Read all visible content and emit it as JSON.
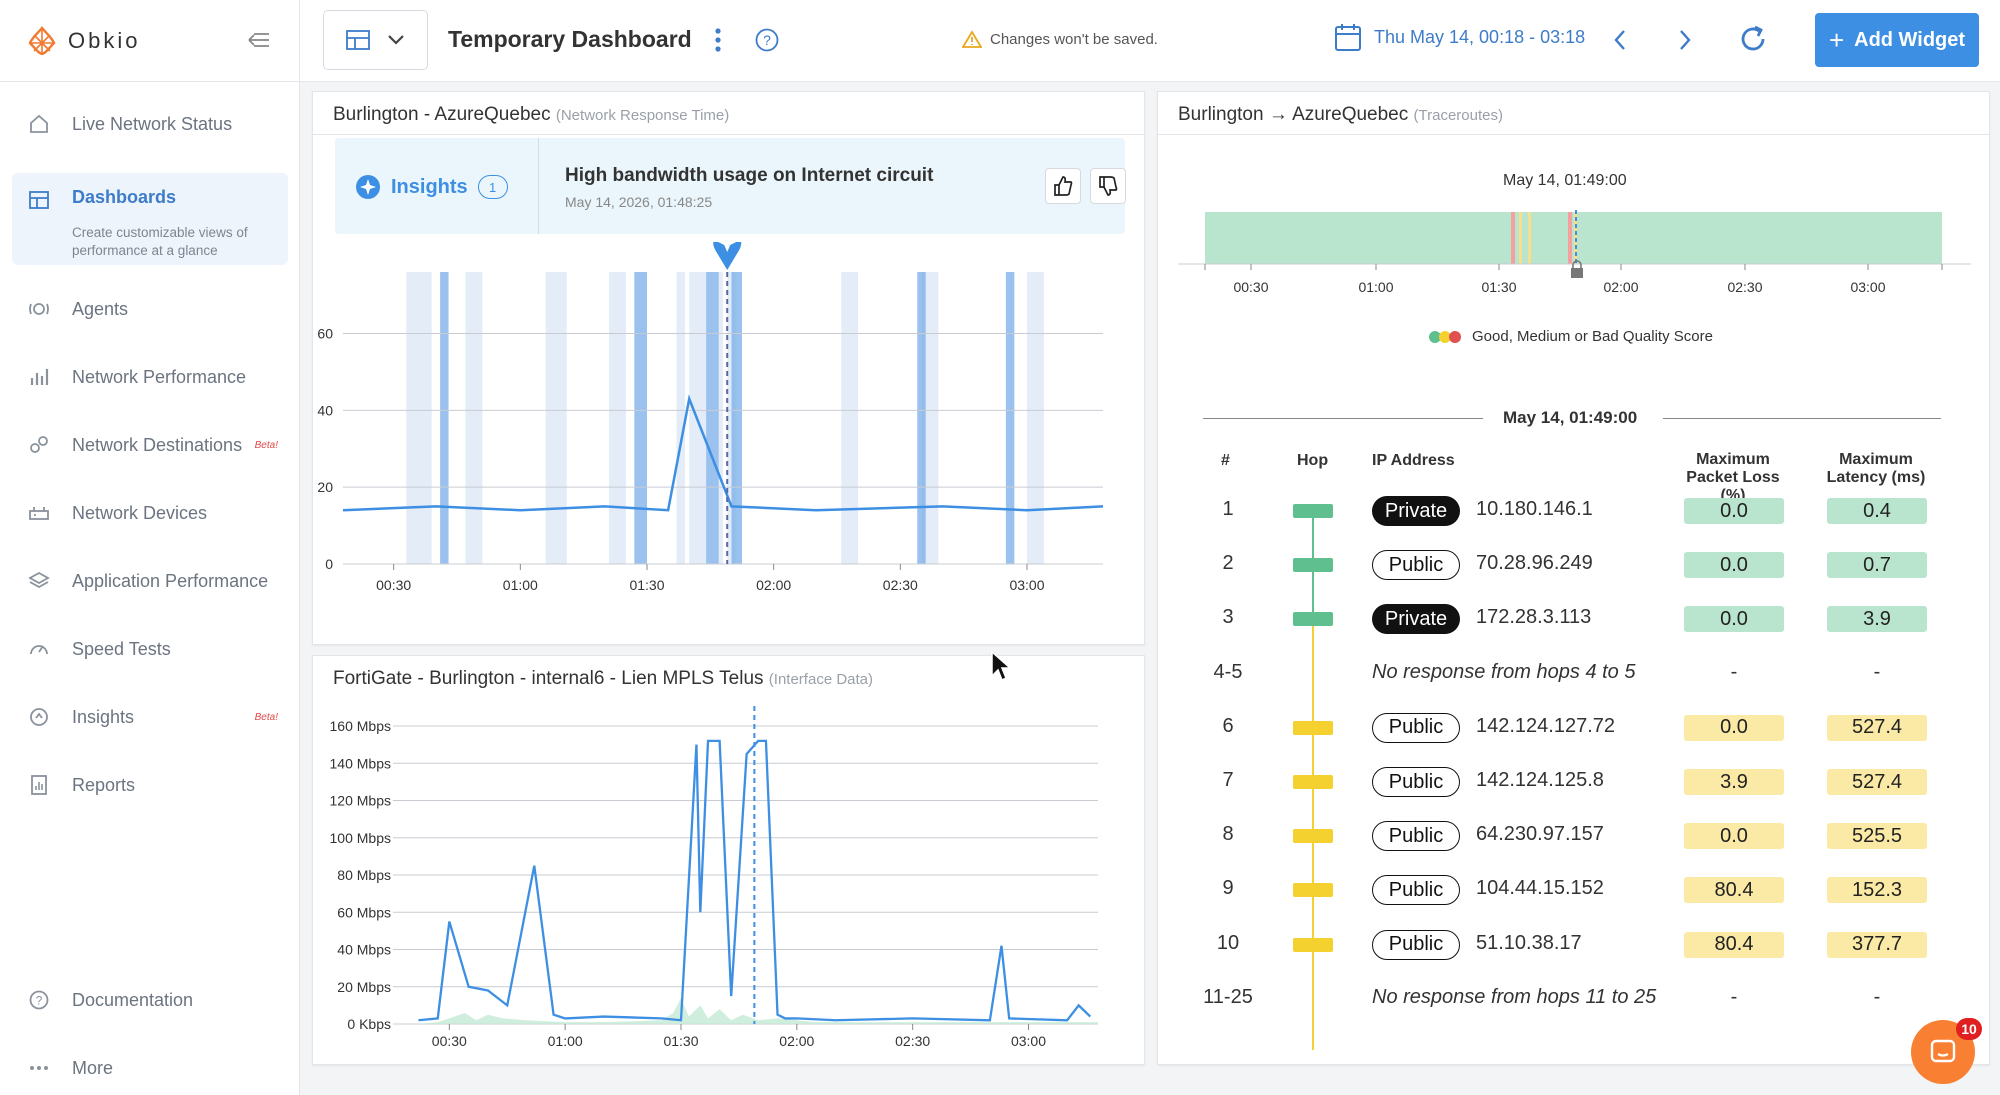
{
  "app": {
    "name": "Obkio"
  },
  "sidebar": {
    "items": [
      {
        "label": "Live Network Status",
        "icon": "home-icon"
      },
      {
        "label": "Dashboards",
        "icon": "dashboard-icon",
        "description": "Create customizable views of performance at a glance",
        "active": true
      },
      {
        "label": "Agents",
        "icon": "agent-icon"
      },
      {
        "label": "Network Performance",
        "icon": "bar-chart-icon"
      },
      {
        "label": "Network Destinations",
        "icon": "destination-icon",
        "badge": "Beta!"
      },
      {
        "label": "Network Devices",
        "icon": "device-icon"
      },
      {
        "label": "Application Performance",
        "icon": "layers-icon"
      },
      {
        "label": "Speed Tests",
        "icon": "gauge-icon"
      },
      {
        "label": "Insights",
        "icon": "insights-icon",
        "badge": "Beta!"
      },
      {
        "label": "Reports",
        "icon": "report-icon"
      }
    ],
    "bottom": [
      {
        "label": "Documentation",
        "icon": "help-circle-icon"
      },
      {
        "label": "More",
        "icon": "more-icon"
      }
    ]
  },
  "header": {
    "title": "Temporary Dashboard",
    "unsaved_warning": "Changes won't be saved.",
    "date_range": "Thu May 14, 00:18 - 03:18",
    "add_widget": "Add Widget"
  },
  "response_panel": {
    "title": "Burlington - AzureQuebec",
    "subtitle": "(Network Response Time)",
    "insights_label": "Insights",
    "insights_count": "1",
    "insight_title": "High bandwidth usage on Internet circuit",
    "insight_date": "May 14, 2026, 01:48:25",
    "y_ticks": [
      "0",
      "20",
      "40",
      "60"
    ],
    "x_ticks": [
      "00:30",
      "01:00",
      "01:30",
      "02:00",
      "02:30",
      "03:00"
    ]
  },
  "interface_panel": {
    "title": "FortiGate - Burlington - internal6 - Lien MPLS Telus",
    "subtitle": "(Interface Data)",
    "y_ticks": [
      "0 Kbps",
      "20 Mbps",
      "40 Mbps",
      "60 Mbps",
      "80 Mbps",
      "100 Mbps",
      "120 Mbps",
      "140 Mbps",
      "160 Mbps"
    ],
    "x_ticks": [
      "00:30",
      "01:00",
      "01:30",
      "02:00",
      "02:30",
      "03:00"
    ]
  },
  "chart_data": [
    {
      "type": "line",
      "x_ticks": [
        "00:30",
        "01:00",
        "01:30",
        "02:00",
        "02:30",
        "03:00"
      ],
      "ylim": [
        0,
        76
      ],
      "series": [
        {
          "x": [
            "00:18",
            "00:40",
            "01:00",
            "01:20",
            "01:35",
            "01:40",
            "01:50",
            "02:10",
            "02:40",
            "03:00",
            "03:18"
          ],
          "values": [
            14,
            15,
            14,
            15,
            14,
            43,
            15,
            14,
            15,
            14,
            15
          ]
        }
      ]
    },
    {
      "type": "line",
      "x_ticks": [
        "00:30",
        "01:00",
        "01:30",
        "02:00",
        "02:30",
        "03:00"
      ],
      "ylabel": "",
      "ylim": [
        0,
        160
      ],
      "series": [
        {
          "x": [
            "00:22",
            "00:27",
            "00:30",
            "00:35",
            "00:40",
            "00:45",
            "00:52",
            "00:57",
            "01:00",
            "01:10",
            "01:25",
            "01:30",
            "01:34",
            "01:35",
            "01:37",
            "01:40",
            "01:43",
            "01:47",
            "01:50",
            "01:52",
            "01:55",
            "01:57",
            "02:00",
            "02:10",
            "02:30",
            "02:50",
            "02:53",
            "02:55",
            "03:10",
            "03:13",
            "03:16"
          ],
          "values": [
            2,
            3,
            55,
            20,
            18,
            10,
            85,
            5,
            3,
            4,
            3,
            2,
            150,
            60,
            152,
            152,
            15,
            145,
            152,
            152,
            5,
            3,
            3,
            2,
            3,
            2,
            42,
            3,
            2,
            10,
            4
          ]
        }
      ]
    }
  ],
  "traceroute_panel": {
    "title": "Burlington → AzureQuebec",
    "subtitle": "(Traceroutes)",
    "timeline_time": "May 14, 01:49:00",
    "timeline_ticks": [
      "00:30",
      "01:00",
      "01:30",
      "02:00",
      "02:30",
      "03:00"
    ],
    "legend": "Good, Medium or Bad Quality Score",
    "table_time": "May 14, 01:49:00",
    "columns": {
      "num": "#",
      "hop": "Hop",
      "ip": "IP Address",
      "loss_1": "Maximum",
      "loss_2": "Packet Loss (%)",
      "lat_1": "Maximum",
      "lat_2": "Latency (ms)"
    },
    "rows": [
      {
        "num": "1",
        "type": "Private",
        "ip": "10.180.146.1",
        "loss": "0.0",
        "latency": "0.4",
        "color": "green"
      },
      {
        "num": "2",
        "type": "Public",
        "ip": "70.28.96.249",
        "loss": "0.0",
        "latency": "0.7",
        "color": "green"
      },
      {
        "num": "3",
        "type": "Private",
        "ip": "172.28.3.113",
        "loss": "0.0",
        "latency": "3.9",
        "color": "green"
      },
      {
        "num": "4-5",
        "message": "No response from hops 4 to 5",
        "loss": "-",
        "latency": "-"
      },
      {
        "num": "6",
        "type": "Public",
        "ip": "142.124.127.72",
        "loss": "0.0",
        "latency": "527.4",
        "color": "yellow"
      },
      {
        "num": "7",
        "type": "Public",
        "ip": "142.124.125.8",
        "loss": "3.9",
        "latency": "527.4",
        "color": "yellow"
      },
      {
        "num": "8",
        "type": "Public",
        "ip": "64.230.97.157",
        "loss": "0.0",
        "latency": "525.5",
        "color": "yellow"
      },
      {
        "num": "9",
        "type": "Public",
        "ip": "104.44.15.152",
        "loss": "80.4",
        "latency": "152.3",
        "color": "yellow"
      },
      {
        "num": "10",
        "type": "Public",
        "ip": "51.10.38.17",
        "loss": "80.4",
        "latency": "377.7",
        "color": "yellow"
      },
      {
        "num": "11-25",
        "message": "No response from hops 11 to 25",
        "loss": "-",
        "latency": "-"
      }
    ]
  },
  "chat": {
    "count": "10"
  },
  "colors": {
    "accent": "#3d8fe3",
    "green": "#5fbf8f",
    "yellow": "#f5d130",
    "red": "#e05050"
  }
}
